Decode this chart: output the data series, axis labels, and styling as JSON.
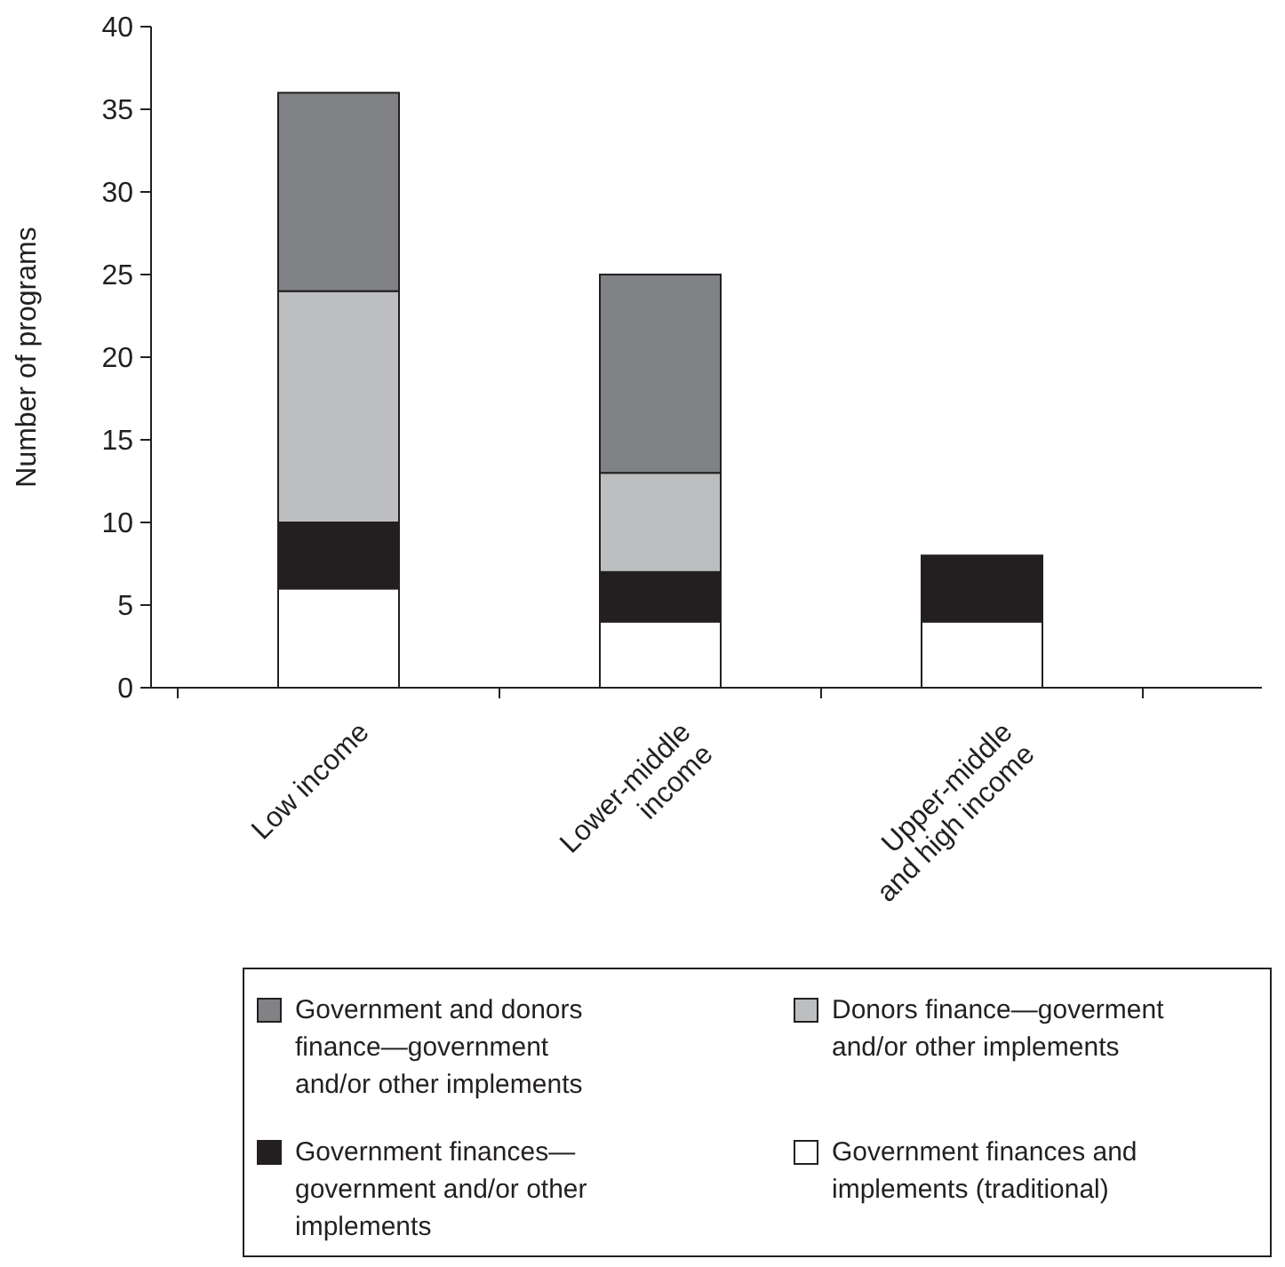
{
  "chart_data": {
    "type": "bar",
    "stacked": true,
    "ylabel": "Number of programs",
    "categories": [
      "Low income",
      "Lower-middle income",
      "Upper-middle and high income"
    ],
    "ylim": [
      0,
      40
    ],
    "yticks": [
      0,
      5,
      10,
      15,
      20,
      25,
      30,
      35,
      40
    ],
    "grid": false,
    "legend": "bottom",
    "series": [
      {
        "name": "Government finances and implements (traditional)",
        "color": "#ffffff",
        "values": [
          6,
          4,
          4
        ]
      },
      {
        "name": "Government finances—government and/or other implements",
        "color": "#231f20",
        "values": [
          4,
          3,
          4
        ]
      },
      {
        "name": "Donors finance—goverment and/or other implements",
        "color": "#bcbec0",
        "values": [
          14,
          6,
          0
        ]
      },
      {
        "name": "Government and donors finance—government and/or other implements",
        "color": "#808285",
        "values": [
          12,
          12,
          0
        ]
      }
    ]
  }
}
